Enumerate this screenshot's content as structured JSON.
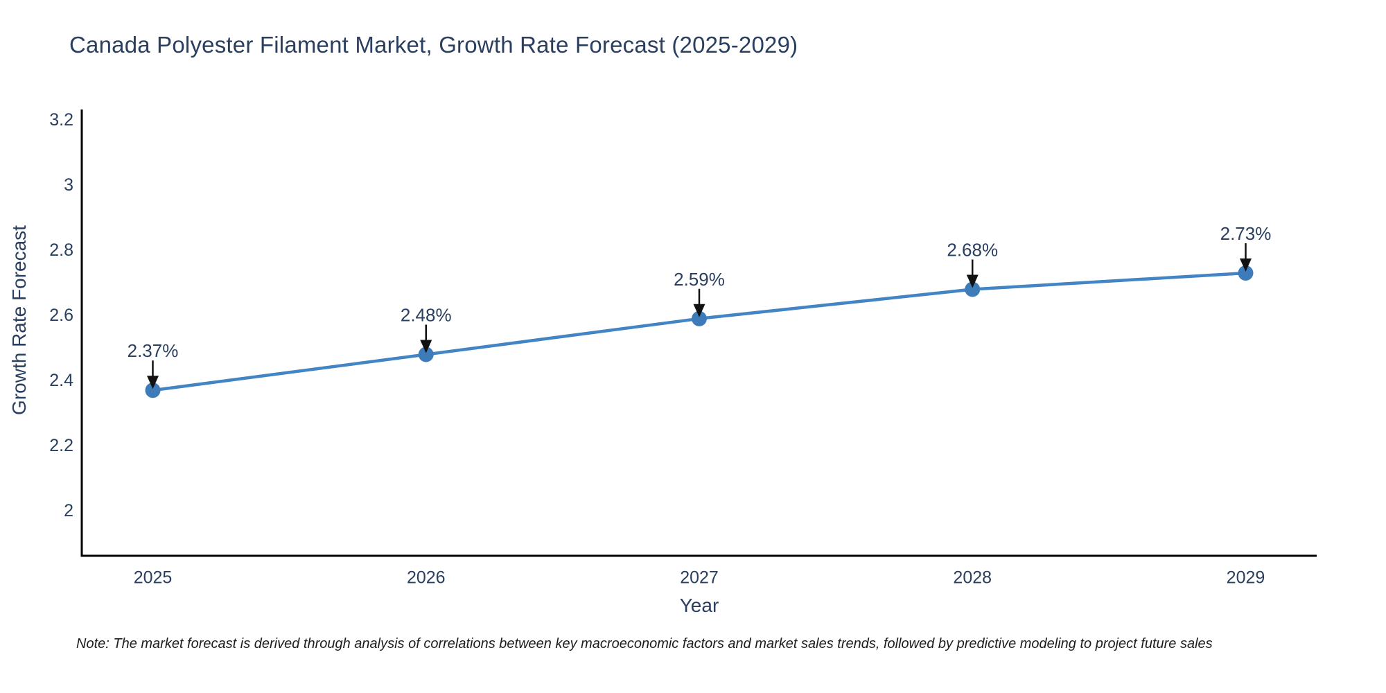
{
  "title": "Canada Polyester Filament Market, Growth Rate Forecast (2025-2029)",
  "note": "Note: The market forecast is derived through analysis of correlations between key macroeconomic factors and market sales trends, followed by predictive modeling to project future sales",
  "colors": {
    "line": "#4384c4",
    "marker": "#3e7cb9",
    "axis": "#000000",
    "arrow": "#111111",
    "text": "#2a3f5f",
    "background": "#ffffff"
  },
  "chart_data": {
    "type": "line",
    "title": "Canada Polyester Filament Market, Growth Rate Forecast (2025-2029)",
    "xlabel": "Year",
    "ylabel": "Growth Rate Forecast",
    "x": [
      2025,
      2026,
      2027,
      2028,
      2029
    ],
    "y": [
      2.37,
      2.48,
      2.59,
      2.68,
      2.73
    ],
    "point_labels": [
      "2.37%",
      "2.48%",
      "2.59%",
      "2.68%",
      "2.73%"
    ],
    "x_ticks": [
      2025,
      2026,
      2027,
      2028,
      2029
    ],
    "x_tick_labels": [
      "2025",
      "2026",
      "2027",
      "2028",
      "2029"
    ],
    "y_ticks": [
      2,
      2.2,
      2.4,
      2.6,
      2.8,
      3,
      3.2
    ],
    "y_tick_labels": [
      "2",
      "2.2",
      "2.4",
      "2.6",
      "2.8",
      "3",
      "3.2"
    ],
    "xlim": [
      2024.74,
      2029.26
    ],
    "ylim": [
      1.862,
      3.232
    ],
    "grid": false,
    "legend": "none",
    "annotations": "value labels with downward arrows above each data point"
  }
}
